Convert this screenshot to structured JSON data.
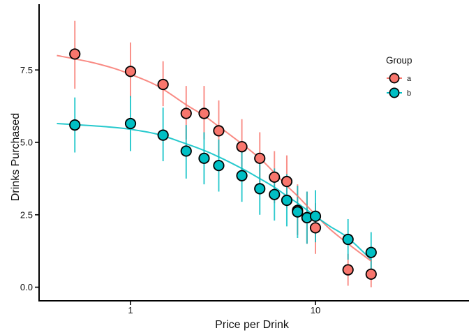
{
  "figure": {
    "background": "#FFFFFF",
    "axis_color": "#000000",
    "point_outline": "#000000"
  },
  "chart_data": {
    "type": "scatter",
    "title": "",
    "xlabel": "Price per Drink",
    "ylabel": "Drinks Purchased",
    "x_scale": "log10",
    "xlim": [
      0.32,
      68
    ],
    "ylim": [
      -0.47,
      9.77
    ],
    "grid": false,
    "x_ticks": [
      {
        "v": 1,
        "label": "1"
      },
      {
        "v": 10,
        "label": "10"
      }
    ],
    "y_ticks": [
      {
        "v": 0,
        "label": "0.0"
      },
      {
        "v": 2.5,
        "label": "2.5"
      },
      {
        "v": 5,
        "label": "5.0"
      },
      {
        "v": 7.5,
        "label": "7.5"
      }
    ],
    "legend": {
      "title": "Group",
      "position": "right-top",
      "entries": [
        "a",
        "b"
      ]
    },
    "series": [
      {
        "name": "a",
        "color": "#F8766D",
        "points": [
          {
            "x": 0.5,
            "y": 8.05,
            "lo": 6.85,
            "hi": 9.2
          },
          {
            "x": 1,
            "y": 7.45,
            "lo": 6.55,
            "hi": 8.45
          },
          {
            "x": 1.5,
            "y": 7.0,
            "lo": 6.25,
            "hi": 7.8
          },
          {
            "x": 2,
            "y": 6.0,
            "lo": 5.1,
            "hi": 6.95
          },
          {
            "x": 2.5,
            "y": 6.0,
            "lo": 5.1,
            "hi": 6.95
          },
          {
            "x": 3,
            "y": 5.4,
            "lo": 4.55,
            "hi": 6.45
          },
          {
            "x": 4,
            "y": 4.85,
            "lo": 3.95,
            "hi": 5.8
          },
          {
            "x": 5,
            "y": 4.45,
            "lo": 3.5,
            "hi": 5.35
          },
          {
            "x": 6,
            "y": 3.8,
            "lo": 2.9,
            "hi": 4.7
          },
          {
            "x": 7,
            "y": 3.65,
            "lo": 2.75,
            "hi": 4.55
          },
          {
            "x": 8,
            "y": 2.65,
            "lo": 1.8,
            "hi": 3.55
          },
          {
            "x": 9,
            "y": 2.4,
            "lo": 1.5,
            "hi": 3.3
          },
          {
            "x": 10,
            "y": 2.05,
            "lo": 1.15,
            "hi": 2.9
          },
          {
            "x": 15,
            "y": 0.6,
            "lo": 0.05,
            "hi": 1.15
          },
          {
            "x": 20,
            "y": 0.45,
            "lo": 0.0,
            "hi": 0.95
          }
        ],
        "curve": [
          [
            0.4,
            8.0
          ],
          [
            0.6,
            7.78
          ],
          [
            0.8,
            7.57
          ],
          [
            1,
            7.35
          ],
          [
            1.4,
            6.95
          ],
          [
            2,
            6.3
          ],
          [
            2.5,
            5.92
          ],
          [
            3,
            5.55
          ],
          [
            4,
            4.95
          ],
          [
            5,
            4.45
          ],
          [
            6,
            3.95
          ],
          [
            7,
            3.5
          ],
          [
            8,
            3.15
          ],
          [
            10,
            2.5
          ],
          [
            12,
            2.0
          ],
          [
            15,
            1.5
          ],
          [
            20,
            0.9
          ]
        ]
      },
      {
        "name": "b",
        "color": "#00BFC4",
        "points": [
          {
            "x": 0.5,
            "y": 5.6,
            "lo": 4.65,
            "hi": 6.55
          },
          {
            "x": 1,
            "y": 5.65,
            "lo": 4.7,
            "hi": 6.6
          },
          {
            "x": 1.5,
            "y": 5.25,
            "lo": 4.35,
            "hi": 6.2
          },
          {
            "x": 2,
            "y": 4.7,
            "lo": 3.75,
            "hi": 5.6
          },
          {
            "x": 2.5,
            "y": 4.45,
            "lo": 3.55,
            "hi": 5.35
          },
          {
            "x": 3,
            "y": 4.2,
            "lo": 3.3,
            "hi": 5.1
          },
          {
            "x": 4,
            "y": 3.85,
            "lo": 2.95,
            "hi": 4.75
          },
          {
            "x": 5,
            "y": 3.4,
            "lo": 2.5,
            "hi": 4.3
          },
          {
            "x": 6,
            "y": 3.2,
            "lo": 2.3,
            "hi": 4.1
          },
          {
            "x": 7,
            "y": 3.0,
            "lo": 2.1,
            "hi": 3.9
          },
          {
            "x": 8,
            "y": 2.6,
            "lo": 1.7,
            "hi": 3.5
          },
          {
            "x": 9,
            "y": 2.4,
            "lo": 1.5,
            "hi": 3.3
          },
          {
            "x": 10,
            "y": 2.45,
            "lo": 1.55,
            "hi": 3.35
          },
          {
            "x": 15,
            "y": 1.65,
            "lo": 0.95,
            "hi": 2.35
          },
          {
            "x": 20,
            "y": 1.2,
            "lo": 0.5,
            "hi": 1.9
          }
        ],
        "curve": [
          [
            0.4,
            5.65
          ],
          [
            0.6,
            5.58
          ],
          [
            0.8,
            5.52
          ],
          [
            1,
            5.45
          ],
          [
            1.4,
            5.28
          ],
          [
            2,
            4.95
          ],
          [
            2.5,
            4.72
          ],
          [
            3,
            4.5
          ],
          [
            4,
            4.1
          ],
          [
            5,
            3.75
          ],
          [
            6,
            3.45
          ],
          [
            7,
            3.15
          ],
          [
            8,
            2.9
          ],
          [
            10,
            2.45
          ],
          [
            12,
            2.1
          ],
          [
            15,
            1.7
          ],
          [
            20,
            0.95
          ]
        ]
      }
    ]
  }
}
